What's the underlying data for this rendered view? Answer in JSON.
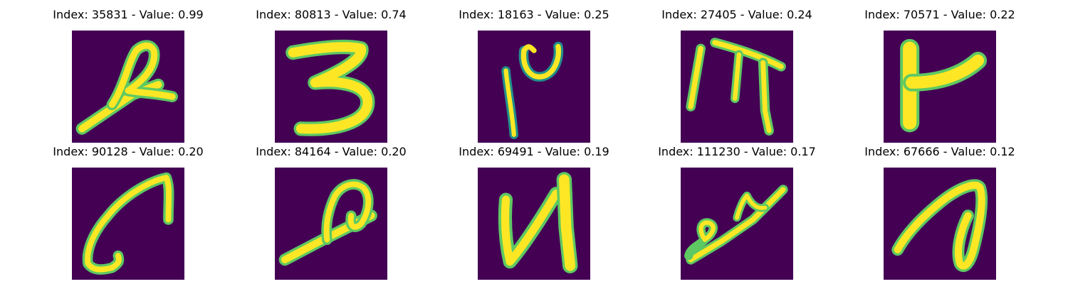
{
  "colors": {
    "background": "#440154",
    "mid": "#21918c",
    "light": "#5ec962",
    "highlight": "#fde725"
  },
  "panels": [
    {
      "title": "Index: 35831 - Value: 0.99",
      "glyph": "hooked-diagonal-stroke-icon"
    },
    {
      "title": "Index: 80813 - Value: 0.74",
      "glyph": "digit-three-icon"
    },
    {
      "title": "Index: 18163 - Value: 0.25",
      "glyph": "stroke-with-cup-icon"
    },
    {
      "title": "Index: 27405 - Value: 0.24",
      "glyph": "bar-and-pi-icon"
    },
    {
      "title": "Index: 70571 - Value: 0.22",
      "glyph": "thick-y-stroke-icon"
    },
    {
      "title": "Index: 90128 - Value: 0.20",
      "glyph": "long-curve-icon"
    },
    {
      "title": "Index: 84164 - Value: 0.20",
      "glyph": "loop-diagonal-stroke-icon"
    },
    {
      "title": "Index: 69491 - Value: 0.19",
      "glyph": "letter-n-shape-icon"
    },
    {
      "title": "Index: 111230 - Value: 0.17",
      "glyph": "loop-with-line-icon"
    },
    {
      "title": "Index: 67666 - Value: 0.12",
      "glyph": "slanted-loop-icon"
    }
  ]
}
